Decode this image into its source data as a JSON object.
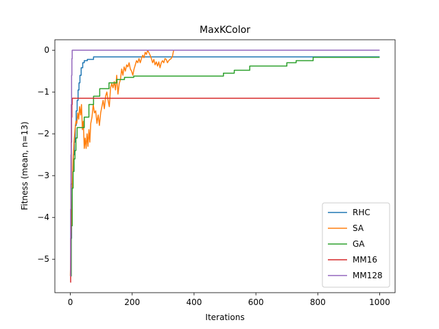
{
  "chart_data": {
    "type": "line",
    "title": "MaxKColor",
    "xlabel": "Iterations",
    "ylabel": "Fitness (mean, n=13)",
    "xlim": [
      -50,
      1050
    ],
    "ylim": [
      -5.8,
      0.25
    ],
    "xticks": [
      0,
      200,
      400,
      600,
      800,
      1000
    ],
    "yticks": [
      -5,
      -4,
      -3,
      -2,
      -1,
      0
    ],
    "ytick_labels": [
      "−5",
      "−4",
      "−3",
      "−2",
      "−1",
      "0"
    ],
    "xtick_labels": [
      "0",
      "200",
      "400",
      "600",
      "800",
      "1000"
    ],
    "grid": false,
    "legend_position": "lower-right",
    "series": [
      {
        "name": "RHC",
        "color": "#1f77b4",
        "step": true,
        "points": [
          [
            0,
            -5.4
          ],
          [
            2,
            -4.5
          ],
          [
            4,
            -3.8
          ],
          [
            6,
            -3.2
          ],
          [
            8,
            -2.9
          ],
          [
            10,
            -2.5
          ],
          [
            13,
            -2.2
          ],
          [
            16,
            -1.8
          ],
          [
            19,
            -1.45
          ],
          [
            22,
            -1.2
          ],
          [
            25,
            -0.95
          ],
          [
            28,
            -0.78
          ],
          [
            31,
            -0.6
          ],
          [
            35,
            -0.42
          ],
          [
            40,
            -0.3
          ],
          [
            45,
            -0.25
          ],
          [
            55,
            -0.22
          ],
          [
            75,
            -0.16
          ],
          [
            1000,
            -0.16
          ]
        ]
      },
      {
        "name": "SA",
        "color": "#ff7f0e",
        "step": false,
        "points": [
          [
            0,
            -5.4
          ],
          [
            3,
            -4.3
          ],
          [
            6,
            -3.4
          ],
          [
            9,
            -2.6
          ],
          [
            12,
            -2.2
          ],
          [
            15,
            -1.9
          ],
          [
            18,
            -1.7
          ],
          [
            21,
            -1.75
          ],
          [
            24,
            -1.5
          ],
          [
            27,
            -1.65
          ],
          [
            30,
            -1.35
          ],
          [
            33,
            -1.55
          ],
          [
            36,
            -1.3
          ],
          [
            39,
            -1.9
          ],
          [
            42,
            -1.7
          ],
          [
            45,
            -2.35
          ],
          [
            48,
            -2.1
          ],
          [
            51,
            -2.35
          ],
          [
            54,
            -2.0
          ],
          [
            57,
            -2.3
          ],
          [
            60,
            -1.9
          ],
          [
            63,
            -2.2
          ],
          [
            66,
            -1.75
          ],
          [
            70,
            -1.6
          ],
          [
            74,
            -1.3
          ],
          [
            78,
            -1.5
          ],
          [
            82,
            -1.45
          ],
          [
            86,
            -1.75
          ],
          [
            90,
            -1.55
          ],
          [
            94,
            -1.8
          ],
          [
            98,
            -1.5
          ],
          [
            102,
            -1.35
          ],
          [
            106,
            -1.2
          ],
          [
            110,
            -1.4
          ],
          [
            114,
            -1.1
          ],
          [
            118,
            -1.0
          ],
          [
            122,
            -1.2
          ],
          [
            126,
            -1.35
          ],
          [
            130,
            -0.9
          ],
          [
            134,
            -0.8
          ],
          [
            138,
            -0.9
          ],
          [
            142,
            -0.75
          ],
          [
            146,
            -0.95
          ],
          [
            150,
            -0.6
          ],
          [
            154,
            -1.05
          ],
          [
            158,
            -0.8
          ],
          [
            162,
            -0.7
          ],
          [
            166,
            -0.45
          ],
          [
            170,
            -0.6
          ],
          [
            174,
            -0.4
          ],
          [
            178,
            -0.5
          ],
          [
            182,
            -0.35
          ],
          [
            186,
            -0.4
          ],
          [
            190,
            -0.3
          ],
          [
            194,
            -0.45
          ],
          [
            198,
            -0.5
          ],
          [
            202,
            -0.6
          ],
          [
            206,
            -0.45
          ],
          [
            210,
            -0.35
          ],
          [
            214,
            -0.25
          ],
          [
            218,
            -0.3
          ],
          [
            222,
            -0.2
          ],
          [
            226,
            -0.3
          ],
          [
            230,
            -0.2
          ],
          [
            234,
            -0.12
          ],
          [
            238,
            -0.18
          ],
          [
            242,
            -0.05
          ],
          [
            246,
            -0.1
          ],
          [
            250,
            0.0
          ],
          [
            254,
            -0.06
          ],
          [
            258,
            -0.12
          ],
          [
            262,
            -0.2
          ],
          [
            266,
            -0.3
          ],
          [
            270,
            -0.22
          ],
          [
            274,
            -0.35
          ],
          [
            278,
            -0.28
          ],
          [
            282,
            -0.38
          ],
          [
            286,
            -0.28
          ],
          [
            290,
            -0.42
          ],
          [
            294,
            -0.3
          ],
          [
            298,
            -0.25
          ],
          [
            302,
            -0.3
          ],
          [
            306,
            -0.2
          ],
          [
            310,
            -0.22
          ],
          [
            314,
            -0.3
          ],
          [
            318,
            -0.25
          ],
          [
            322,
            -0.22
          ],
          [
            326,
            -0.2
          ],
          [
            330,
            -0.15
          ],
          [
            334,
            0.0
          ]
        ]
      },
      {
        "name": "GA",
        "color": "#2ca02c",
        "step": true,
        "points": [
          [
            0,
            -5.4
          ],
          [
            3,
            -4.2
          ],
          [
            6,
            -3.3
          ],
          [
            9,
            -2.9
          ],
          [
            12,
            -2.6
          ],
          [
            15,
            -2.4
          ],
          [
            18,
            -2.1
          ],
          [
            22,
            -1.85
          ],
          [
            45,
            -1.6
          ],
          [
            60,
            -1.3
          ],
          [
            75,
            -1.1
          ],
          [
            95,
            -0.92
          ],
          [
            125,
            -0.78
          ],
          [
            150,
            -0.7
          ],
          [
            175,
            -0.65
          ],
          [
            205,
            -0.62
          ],
          [
            495,
            -0.55
          ],
          [
            530,
            -0.48
          ],
          [
            580,
            -0.38
          ],
          [
            700,
            -0.3
          ],
          [
            730,
            -0.25
          ],
          [
            785,
            -0.17
          ],
          [
            1000,
            -0.17
          ]
        ]
      },
      {
        "name": "MM16",
        "color": "#d62728",
        "step": true,
        "points": [
          [
            0,
            -5.55
          ],
          [
            1,
            -4.5
          ],
          [
            2,
            -3.2
          ],
          [
            3,
            -2.2
          ],
          [
            4,
            -1.6
          ],
          [
            5,
            -1.3
          ],
          [
            6,
            -1.15
          ],
          [
            1000,
            -1.15
          ]
        ]
      },
      {
        "name": "MM128",
        "color": "#9467bd",
        "step": true,
        "points": [
          [
            0,
            -5.4
          ],
          [
            1,
            -3.8
          ],
          [
            2,
            -2.5
          ],
          [
            3,
            -1.3
          ],
          [
            4,
            -0.6
          ],
          [
            5,
            -0.2
          ],
          [
            6,
            0.0
          ],
          [
            1000,
            0.0
          ]
        ]
      }
    ]
  }
}
